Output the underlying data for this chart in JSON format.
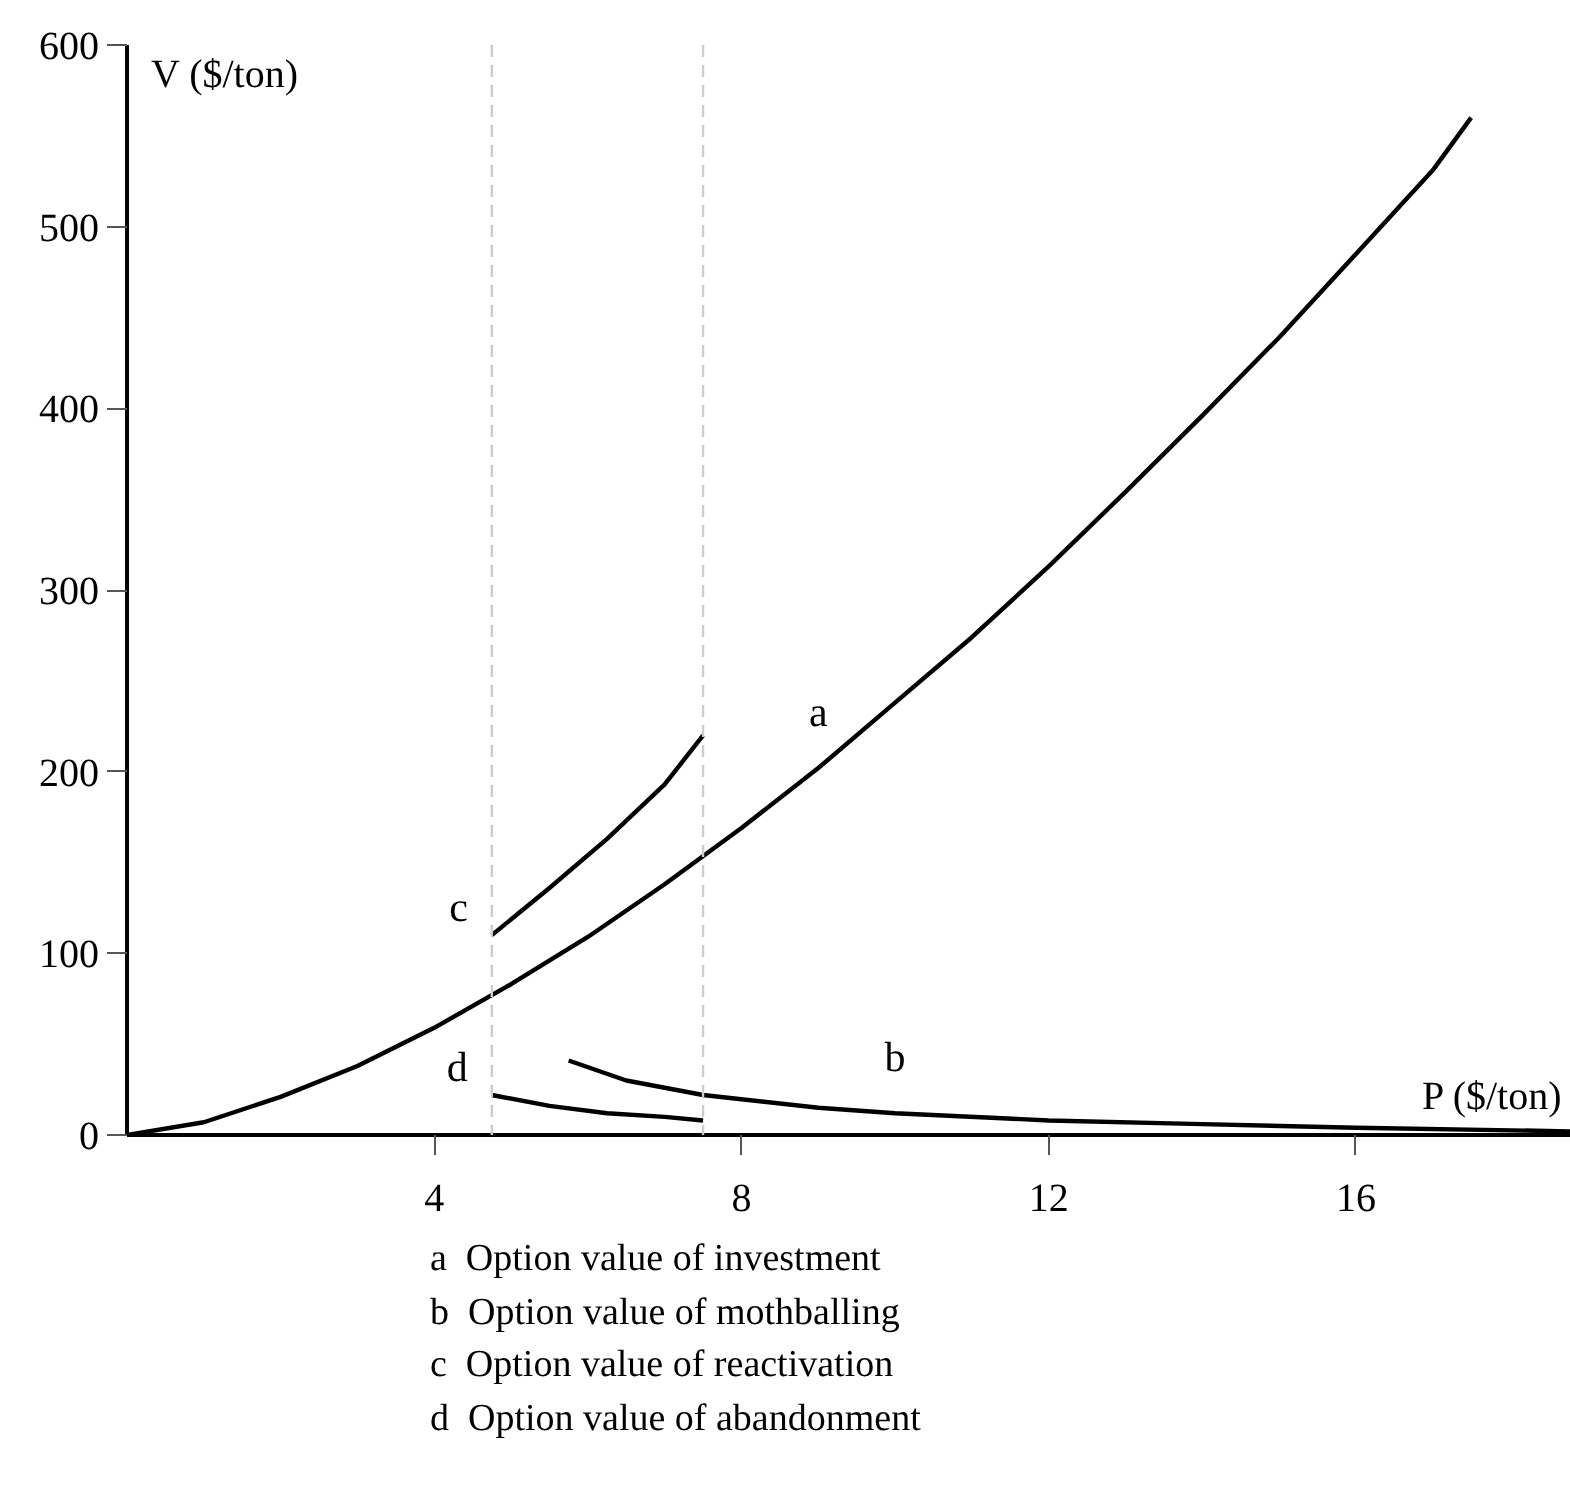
{
  "chart_data": {
    "type": "line",
    "xlabel": "P ($/ton)",
    "ylabel": "V ($/ton)",
    "xlim": [
      0,
      18.8
    ],
    "ylim": [
      0,
      600
    ],
    "xticks": [
      4,
      8,
      12,
      16
    ],
    "yticks": [
      0,
      100,
      200,
      300,
      400,
      500,
      600
    ],
    "grid": false,
    "marker": "none",
    "line_style": "solid",
    "series": [
      {
        "name": "a",
        "color": "#000000",
        "x": [
          0,
          1,
          2,
          3,
          4,
          5,
          6,
          7,
          8,
          9,
          10,
          11,
          12,
          13,
          14,
          15,
          16,
          17,
          17.5
        ],
        "values": [
          0,
          7,
          21,
          38,
          59,
          83,
          109,
          138,
          169,
          202,
          238,
          274,
          313,
          354,
          396,
          439,
          485,
          531,
          560
        ]
      },
      {
        "name": "b",
        "color": "#000000",
        "x": [
          5.75,
          6.5,
          7.5,
          9,
          10,
          12,
          14,
          16,
          18.8
        ],
        "values": [
          41,
          30,
          22,
          15,
          12,
          8,
          6,
          4,
          2
        ]
      },
      {
        "name": "c",
        "color": "#000000",
        "x": [
          4.75,
          5.5,
          6.25,
          7,
          7.5
        ],
        "values": [
          110,
          136,
          163,
          193,
          220
        ]
      },
      {
        "name": "d",
        "color": "#000000",
        "x": [
          4.75,
          5.5,
          6.25,
          7,
          7.5
        ],
        "values": [
          22,
          16,
          12,
          10,
          8
        ]
      }
    ],
    "ref_lines": [
      {
        "axis": "x",
        "value": 4.75,
        "color": "#cccccc",
        "line_style": "dashed"
      },
      {
        "axis": "x",
        "value": 7.5,
        "color": "#cccccc",
        "line_style": "dashed"
      }
    ],
    "annotations": [
      "a  Option value of investment",
      "b  Option value of mothballing",
      "c  Option value of reactivation",
      "d  Option value of abandonment"
    ]
  }
}
